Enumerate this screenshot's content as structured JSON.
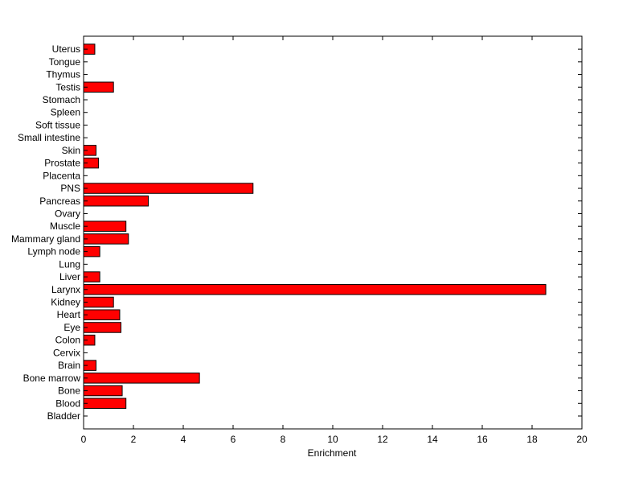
{
  "chart_data": {
    "type": "bar",
    "orientation": "horizontal",
    "categories": [
      "Bladder",
      "Blood",
      "Bone",
      "Bone marrow",
      "Brain",
      "Cervix",
      "Colon",
      "Eye",
      "Heart",
      "Kidney",
      "Larynx",
      "Liver",
      "Lung",
      "Lymph node",
      "Mammary gland",
      "Muscle",
      "Ovary",
      "Pancreas",
      "PNS",
      "Placenta",
      "Prostate",
      "Skin",
      "Small intestine",
      "Soft tissue",
      "Spleen",
      "Stomach",
      "Testis",
      "Thymus",
      "Tongue",
      "Uterus"
    ],
    "values": [
      0,
      1.7,
      1.55,
      4.65,
      0.5,
      0,
      0.45,
      1.5,
      1.45,
      1.2,
      18.55,
      0.65,
      0,
      0.65,
      1.8,
      1.7,
      0,
      2.6,
      6.8,
      0,
      0.6,
      0.5,
      0,
      0,
      0,
      0,
      1.2,
      0,
      0,
      0.45
    ],
    "xlabel": "Enrichment",
    "ylabel": "",
    "title": "",
    "xlim": [
      0,
      20
    ],
    "xticks": [
      0,
      2,
      4,
      6,
      8,
      10,
      12,
      14,
      16,
      18,
      20
    ],
    "grid": false,
    "bar_color": "#ff0000",
    "edge_color": "#000000"
  }
}
